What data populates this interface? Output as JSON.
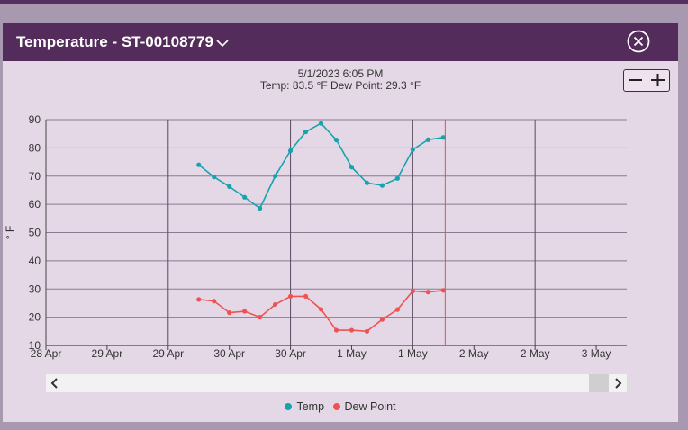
{
  "header": {
    "title": "Temperature - ST-00108779"
  },
  "tooltip": {
    "date": "5/1/2023 6:05 PM",
    "values": "Temp: 83.5 °F  Dew Point: 29.3 °F"
  },
  "chart_data": {
    "type": "line",
    "ylabel": "° F",
    "ylim": [
      10,
      90
    ],
    "yticks": [
      10,
      20,
      30,
      40,
      50,
      60,
      70,
      80,
      90
    ],
    "xticks": [
      "28 Apr",
      "29 Apr",
      "29 Apr",
      "30 Apr",
      "30 Apr",
      "1 May",
      "1 May",
      "2 May",
      "2 May",
      "3 May"
    ],
    "crosshair_x": 6.53,
    "grid": true,
    "legend": "bottom-center",
    "series": [
      {
        "name": "Temp",
        "color": "#17a3ad",
        "x": [
          2.5,
          2.75,
          3.0,
          3.25,
          3.5,
          3.75,
          4.0,
          4.25,
          4.5,
          4.75,
          5.0,
          5.25,
          5.5,
          5.75,
          6.0,
          6.25,
          6.5
        ],
        "values": [
          74,
          69.7,
          66.3,
          62.5,
          58.6,
          70,
          79,
          85.7,
          88.7,
          82.8,
          73.2,
          67.6,
          66.7,
          69.2,
          79.4,
          82.9,
          83.7
        ]
      },
      {
        "name": "Dew Point",
        "color": "#ef5252",
        "x": [
          2.5,
          2.75,
          3.0,
          3.25,
          3.5,
          3.75,
          4.0,
          4.25,
          4.5,
          4.75,
          5.0,
          5.25,
          5.5,
          5.75,
          6.0,
          6.25,
          6.5
        ],
        "values": [
          26.3,
          25.7,
          21.6,
          22.1,
          20,
          24.5,
          27.4,
          27.4,
          22.8,
          15.4,
          15.4,
          15,
          19.2,
          22.7,
          29.3,
          28.9,
          29.5
        ]
      }
    ]
  },
  "scrollbar": {
    "left": "‹",
    "right": "›"
  }
}
